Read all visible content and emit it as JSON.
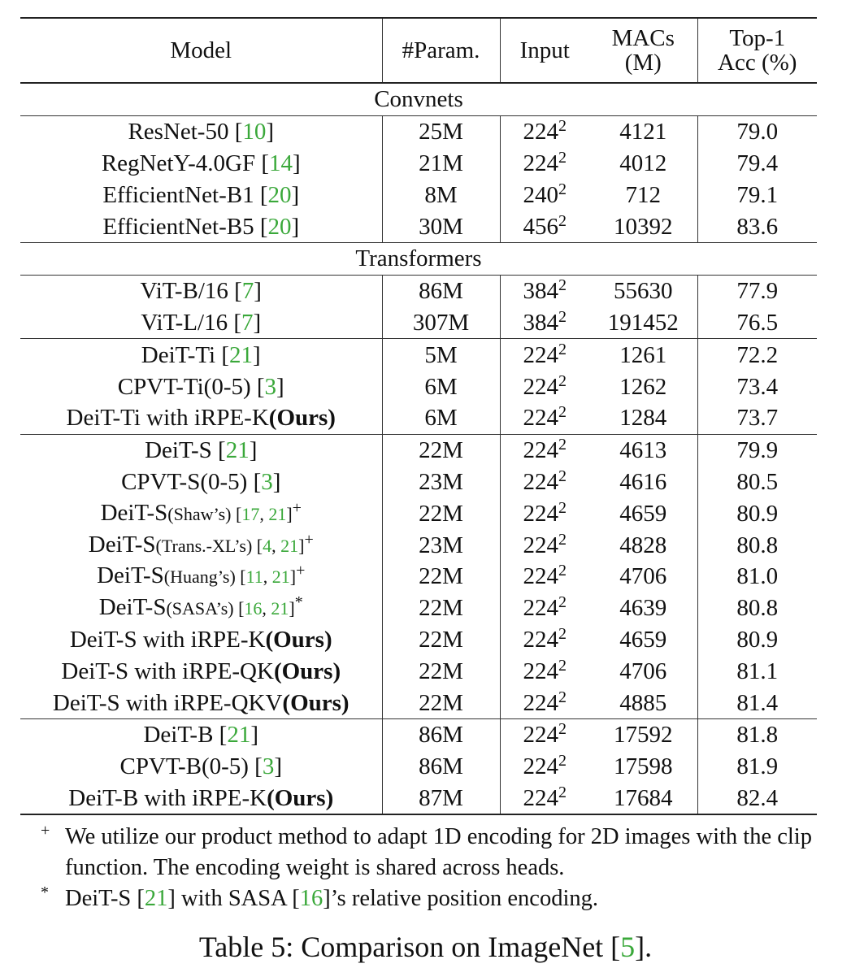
{
  "table": {
    "header": [
      [
        "Model"
      ],
      [
        "#Param."
      ],
      [
        "Input"
      ],
      [
        "MACs",
        "(M)"
      ],
      [
        "Top-1",
        "Acc (%)"
      ]
    ],
    "sections": [
      {
        "title": "Convnets",
        "groups": [
          [
            {
              "model": [
                {
                  "text": "ResNet-50 ["
                },
                {
                  "text": "10",
                  "style": "cite"
                },
                {
                  "text": "]"
                }
              ],
              "params": "25M",
              "input": {
                "base": "224",
                "exp": "2"
              },
              "macs": 4121,
              "acc": "79.0"
            },
            {
              "model": [
                {
                  "text": "RegNetY-4.0GF ["
                },
                {
                  "text": "14",
                  "style": "cite"
                },
                {
                  "text": "]"
                }
              ],
              "params": "21M",
              "input": {
                "base": "224",
                "exp": "2"
              },
              "macs": 4012,
              "acc": "79.4"
            },
            {
              "model": [
                {
                  "text": "EfficientNet-B1 ["
                },
                {
                  "text": "20",
                  "style": "cite"
                },
                {
                  "text": "]"
                }
              ],
              "params": "8M",
              "input": {
                "base": "240",
                "exp": "2"
              },
              "macs": 712,
              "acc": "79.1"
            },
            {
              "model": [
                {
                  "text": "EfficientNet-B5 ["
                },
                {
                  "text": "20",
                  "style": "cite"
                },
                {
                  "text": "]"
                }
              ],
              "params": "30M",
              "input": {
                "base": "456",
                "exp": "2"
              },
              "macs": 10392,
              "acc": "83.6"
            }
          ]
        ]
      },
      {
        "title": "Transformers",
        "groups": [
          [
            {
              "model": [
                {
                  "text": "ViT-B/16 ["
                },
                {
                  "text": "7",
                  "style": "cite"
                },
                {
                  "text": "]"
                }
              ],
              "params": "86M",
              "input": {
                "base": "384",
                "exp": "2"
              },
              "macs": 55630,
              "acc": "77.9"
            },
            {
              "model": [
                {
                  "text": "ViT-L/16 ["
                },
                {
                  "text": "7",
                  "style": "cite"
                },
                {
                  "text": "]"
                }
              ],
              "params": "307M",
              "input": {
                "base": "384",
                "exp": "2"
              },
              "macs": 191452,
              "acc": "76.5"
            }
          ],
          [
            {
              "model": [
                {
                  "text": "DeiT-Ti ["
                },
                {
                  "text": "21",
                  "style": "cite"
                },
                {
                  "text": "]"
                }
              ],
              "params": "5M",
              "input": {
                "base": "224",
                "exp": "2"
              },
              "macs": 1261,
              "acc": "72.2"
            },
            {
              "model": [
                {
                  "text": "CPVT-Ti(0-5) ["
                },
                {
                  "text": "3",
                  "style": "cite"
                },
                {
                  "text": "]"
                }
              ],
              "params": "6M",
              "input": {
                "base": "224",
                "exp": "2"
              },
              "macs": 1262,
              "acc": "73.4"
            },
            {
              "model": [
                {
                  "text": "DeiT-Ti with iRPE-K"
                },
                {
                  "text": "(Ours)",
                  "style": "bold"
                }
              ],
              "params": "6M",
              "input": {
                "base": "224",
                "exp": "2"
              },
              "macs": 1284,
              "acc": "73.7"
            }
          ],
          [
            {
              "model": [
                {
                  "text": "DeiT-S ["
                },
                {
                  "text": "21",
                  "style": "cite"
                },
                {
                  "text": "]"
                }
              ],
              "params": "22M",
              "input": {
                "base": "224",
                "exp": "2"
              },
              "macs": 4613,
              "acc": "79.9"
            },
            {
              "model": [
                {
                  "text": "CPVT-S(0-5) ["
                },
                {
                  "text": "3",
                  "style": "cite"
                },
                {
                  "text": "]"
                }
              ],
              "params": "23M",
              "input": {
                "base": "224",
                "exp": "2"
              },
              "macs": 4616,
              "acc": "80.5"
            },
            {
              "model": [
                {
                  "text": "DeiT-S"
                },
                {
                  "text": "(Shaw’s) [",
                  "style": "small"
                },
                {
                  "text": "17",
                  "style": "small cite"
                },
                {
                  "text": ", ",
                  "style": "small"
                },
                {
                  "text": "21",
                  "style": "small cite"
                },
                {
                  "text": "]",
                  "style": "small"
                },
                {
                  "text": "+",
                  "style": "sup"
                }
              ],
              "params": "22M",
              "input": {
                "base": "224",
                "exp": "2"
              },
              "macs": 4659,
              "acc": "80.9"
            },
            {
              "model": [
                {
                  "text": "DeiT-S"
                },
                {
                  "text": "(Trans.-XL’s) [",
                  "style": "small"
                },
                {
                  "text": "4",
                  "style": "small cite"
                },
                {
                  "text": ", ",
                  "style": "small"
                },
                {
                  "text": "21",
                  "style": "small cite"
                },
                {
                  "text": "]",
                  "style": "small"
                },
                {
                  "text": "+",
                  "style": "sup"
                }
              ],
              "params": "23M",
              "input": {
                "base": "224",
                "exp": "2"
              },
              "macs": 4828,
              "acc": "80.8"
            },
            {
              "model": [
                {
                  "text": "DeiT-S"
                },
                {
                  "text": "(Huang’s) [",
                  "style": "small"
                },
                {
                  "text": "11",
                  "style": "small cite"
                },
                {
                  "text": ", ",
                  "style": "small"
                },
                {
                  "text": "21",
                  "style": "small cite"
                },
                {
                  "text": "]",
                  "style": "small"
                },
                {
                  "text": "+",
                  "style": "sup"
                }
              ],
              "params": "22M",
              "input": {
                "base": "224",
                "exp": "2"
              },
              "macs": 4706,
              "acc": "81.0"
            },
            {
              "model": [
                {
                  "text": "DeiT-S"
                },
                {
                  "text": "(SASA’s) [",
                  "style": "small"
                },
                {
                  "text": "16",
                  "style": "small cite"
                },
                {
                  "text": ", ",
                  "style": "small"
                },
                {
                  "text": "21",
                  "style": "small cite"
                },
                {
                  "text": "]",
                  "style": "small"
                },
                {
                  "text": "*",
                  "style": "sup"
                }
              ],
              "params": "22M",
              "input": {
                "base": "224",
                "exp": "2"
              },
              "macs": 4639,
              "acc": "80.8"
            },
            {
              "model": [
                {
                  "text": "DeiT-S with iRPE-K"
                },
                {
                  "text": "(Ours)",
                  "style": "bold"
                }
              ],
              "params": "22M",
              "input": {
                "base": "224",
                "exp": "2"
              },
              "macs": 4659,
              "acc": "80.9"
            },
            {
              "model": [
                {
                  "text": "DeiT-S with iRPE-QK"
                },
                {
                  "text": "(Ours)",
                  "style": "bold"
                }
              ],
              "params": "22M",
              "input": {
                "base": "224",
                "exp": "2"
              },
              "macs": 4706,
              "acc": "81.1"
            },
            {
              "model": [
                {
                  "text": "DeiT-S with iRPE-QKV"
                },
                {
                  "text": "(Ours)",
                  "style": "bold"
                }
              ],
              "params": "22M",
              "input": {
                "base": "224",
                "exp": "2"
              },
              "macs": 4885,
              "acc": "81.4"
            }
          ],
          [
            {
              "model": [
                {
                  "text": "DeiT-B ["
                },
                {
                  "text": "21",
                  "style": "cite"
                },
                {
                  "text": "]"
                }
              ],
              "params": "86M",
              "input": {
                "base": "224",
                "exp": "2"
              },
              "macs": 17592,
              "acc": "81.8"
            },
            {
              "model": [
                {
                  "text": "CPVT-B(0-5) ["
                },
                {
                  "text": "3",
                  "style": "cite"
                },
                {
                  "text": "]"
                }
              ],
              "params": "86M",
              "input": {
                "base": "224",
                "exp": "2"
              },
              "macs": 17598,
              "acc": "81.9"
            },
            {
              "model": [
                {
                  "text": "DeiT-B with iRPE-K"
                },
                {
                  "text": "(Ours)",
                  "style": "bold"
                }
              ],
              "params": "87M",
              "input": {
                "base": "224",
                "exp": "2"
              },
              "macs": 17684,
              "acc": "82.4"
            }
          ]
        ]
      }
    ]
  },
  "footnotes": [
    {
      "mark": "+",
      "text": [
        {
          "text": "We utilize our product method to adapt 1D encoding for 2D images with the clip function. The encoding weight is shared across heads."
        }
      ]
    },
    {
      "mark": "*",
      "text": [
        {
          "text": "DeiT-S ["
        },
        {
          "text": "21",
          "style": "cite"
        },
        {
          "text": "] with SASA ["
        },
        {
          "text": "16",
          "style": "cite"
        },
        {
          "text": "]’s relative position encoding."
        }
      ]
    }
  ],
  "caption": [
    {
      "text": "Table 5: Comparison on ImageNet ["
    },
    {
      "text": "5",
      "style": "cite"
    },
    {
      "text": "]."
    }
  ]
}
